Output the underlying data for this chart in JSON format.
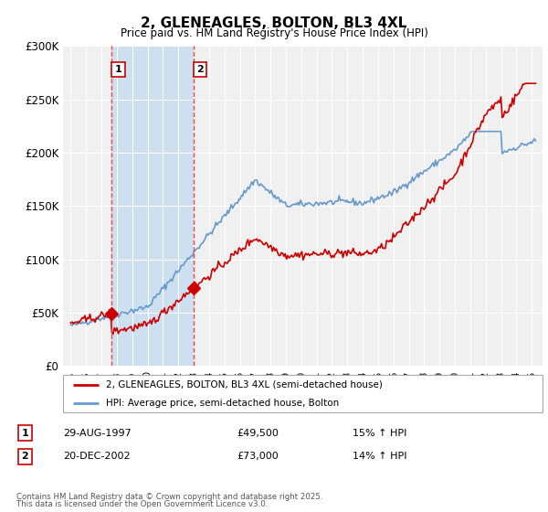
{
  "title": "2, GLENEAGLES, BOLTON, BL3 4XL",
  "subtitle": "Price paid vs. HM Land Registry's House Price Index (HPI)",
  "ylim": [
    0,
    300000
  ],
  "yticks": [
    0,
    50000,
    100000,
    150000,
    200000,
    250000,
    300000
  ],
  "ytick_labels": [
    "£0",
    "£50K",
    "£100K",
    "£150K",
    "£200K",
    "£250K",
    "£300K"
  ],
  "purchase1_year": 1997.66,
  "purchase1_price": 49500,
  "purchase1_label": "1",
  "purchase1_date": "29-AUG-1997",
  "purchase1_price_str": "£49,500",
  "purchase1_hpi": "15% ↑ HPI",
  "purchase2_year": 2002.97,
  "purchase2_price": 73000,
  "purchase2_label": "2",
  "purchase2_date": "20-DEC-2002",
  "purchase2_price_str": "£73,000",
  "purchase2_hpi": "14% ↑ HPI",
  "line_color_red": "#cc0000",
  "line_color_blue": "#6699cc",
  "shade_color": "#cce0f0",
  "dashed_color": "#ff4444",
  "background_color": "#f0f0f0",
  "legend_line1": "2, GLENEAGLES, BOLTON, BL3 4XL (semi-detached house)",
  "legend_line2": "HPI: Average price, semi-detached house, Bolton",
  "footnote1": "Contains HM Land Registry data © Crown copyright and database right 2025.",
  "footnote2": "This data is licensed under the Open Government Licence v3.0."
}
